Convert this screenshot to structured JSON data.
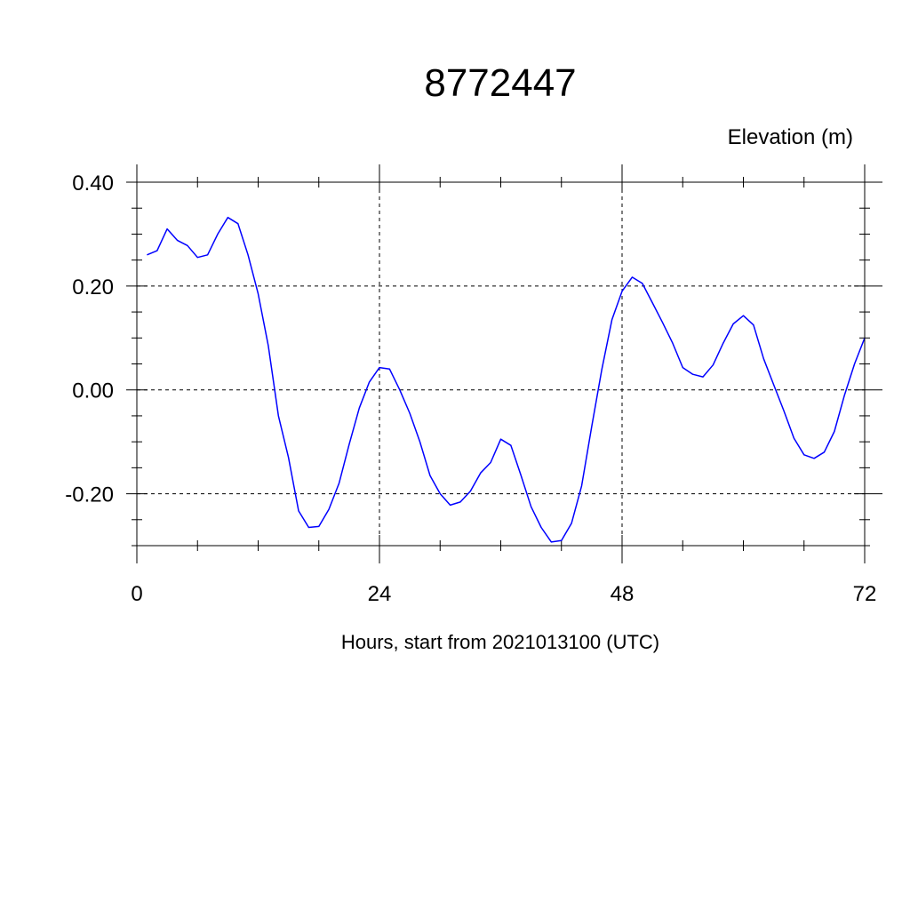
{
  "chart_data": {
    "type": "line",
    "title": "8772447",
    "ylabel": "Elevation (m)",
    "xlabel": "Hours, start from 2021013100 (UTC)",
    "xlim": [
      0,
      72
    ],
    "ylim": [
      -0.3,
      0.4
    ],
    "x_ticks": [
      0,
      24,
      48,
      72
    ],
    "x_tick_labels": [
      "0",
      "24",
      "48",
      "72"
    ],
    "y_ticks": [
      -0.2,
      0.0,
      0.2,
      0.4
    ],
    "y_tick_labels": [
      "-0.20",
      "0.00",
      "0.20",
      "0.40"
    ],
    "grid": true,
    "colors": {
      "line": "#0000ff",
      "axis": "#000000",
      "grid": "#000000"
    },
    "series": [
      {
        "x": [
          1,
          2,
          3,
          4,
          5,
          6,
          7,
          8,
          9,
          10,
          11,
          12,
          13,
          14,
          15,
          16,
          17,
          18,
          19,
          20,
          21,
          22,
          23,
          24,
          25,
          26,
          27,
          28,
          29,
          30,
          31,
          32,
          33,
          34,
          35,
          36,
          37,
          38,
          39,
          40,
          41,
          42,
          43,
          44,
          45,
          46,
          47,
          48,
          49,
          50,
          51,
          52,
          53,
          54,
          55,
          56,
          57,
          58,
          59,
          60,
          61,
          62,
          63,
          64,
          65,
          66,
          67,
          68,
          69,
          70,
          71,
          72
        ],
        "values": [
          0.26,
          0.268,
          0.31,
          0.288,
          0.278,
          0.255,
          0.26,
          0.3,
          0.332,
          0.32,
          0.26,
          0.185,
          0.085,
          -0.05,
          -0.13,
          -0.233,
          -0.265,
          -0.263,
          -0.23,
          -0.18,
          -0.105,
          -0.035,
          0.015,
          0.043,
          0.04,
          0.0,
          -0.045,
          -0.1,
          -0.165,
          -0.2,
          -0.222,
          -0.216,
          -0.195,
          -0.16,
          -0.14,
          -0.095,
          -0.107,
          -0.165,
          -0.225,
          -0.265,
          -0.293,
          -0.29,
          -0.257,
          -0.185,
          -0.07,
          0.04,
          0.135,
          0.19,
          0.217,
          0.205,
          0.168,
          0.13,
          0.09,
          0.043,
          0.03,
          0.025,
          0.048,
          0.09,
          0.127,
          0.143,
          0.125,
          0.06,
          0.01,
          -0.04,
          -0.093,
          -0.125,
          -0.132,
          -0.12,
          -0.08,
          -0.01,
          0.05,
          0.1
        ]
      }
    ]
  }
}
